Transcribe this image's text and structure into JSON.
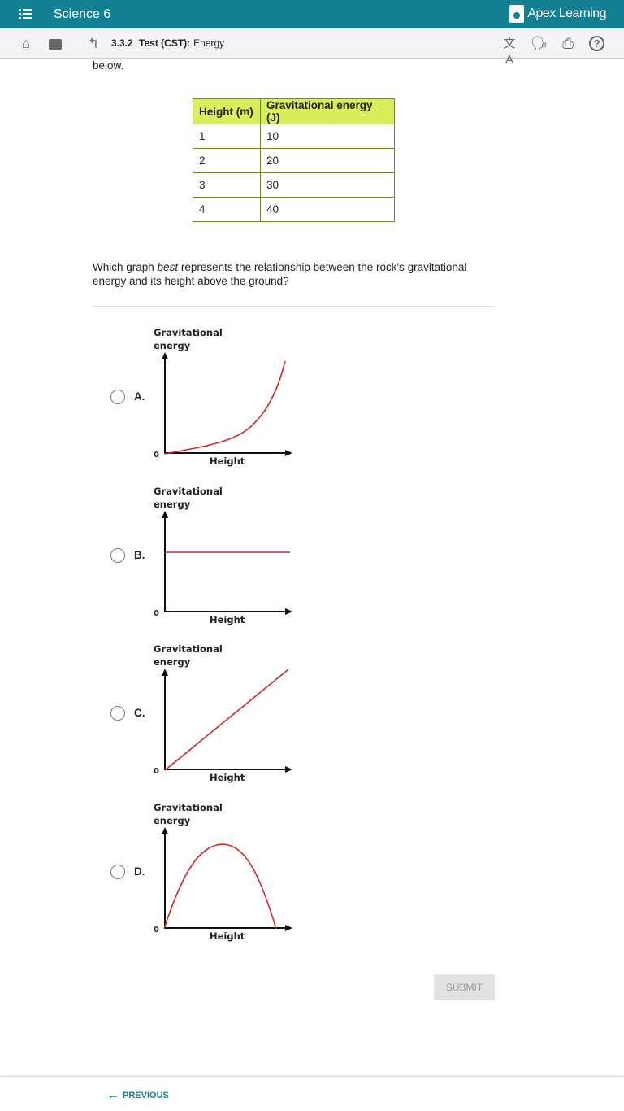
{
  "header": {
    "course": "Science 6",
    "logo": "Apex Learning",
    "menu_icon": "list-icon"
  },
  "toolbar": {
    "section": "3.3.2",
    "activity": "Test (CST):",
    "topic": "Energy",
    "icons": [
      "home-icon",
      "briefcase-icon",
      "up-arrow-icon",
      "translate-icon",
      "text-to-speech-icon",
      "print-icon",
      "help-icon"
    ]
  },
  "intro_tail": "below.",
  "table": {
    "headers": [
      "Height (m)",
      "Gravitational energy (J)"
    ],
    "rows": [
      [
        "1",
        "10"
      ],
      [
        "2",
        "20"
      ],
      [
        "3",
        "30"
      ],
      [
        "4",
        "40"
      ]
    ],
    "header_color": "#d9ee5a"
  },
  "question": {
    "before": "Which graph ",
    "emph": "best",
    "after": " represents the relationship between the rock's gravitational energy and its height above the ground?"
  },
  "graph_labels": {
    "y": "Gravitational energy",
    "y1": "Gravitational",
    "y2": "energy",
    "x": "Height",
    "origin": "0",
    "curve_color": "#cc2a2a"
  },
  "options": [
    {
      "letter": "A.",
      "curve": "exponential increase"
    },
    {
      "letter": "B.",
      "curve": "constant horizontal line"
    },
    {
      "letter": "C.",
      "curve": "linear increase from origin"
    },
    {
      "letter": "D.",
      "curve": "rise then fall (arch)"
    }
  ],
  "submit": "SUBMIT",
  "footer": {
    "previous": "PREVIOUS"
  }
}
